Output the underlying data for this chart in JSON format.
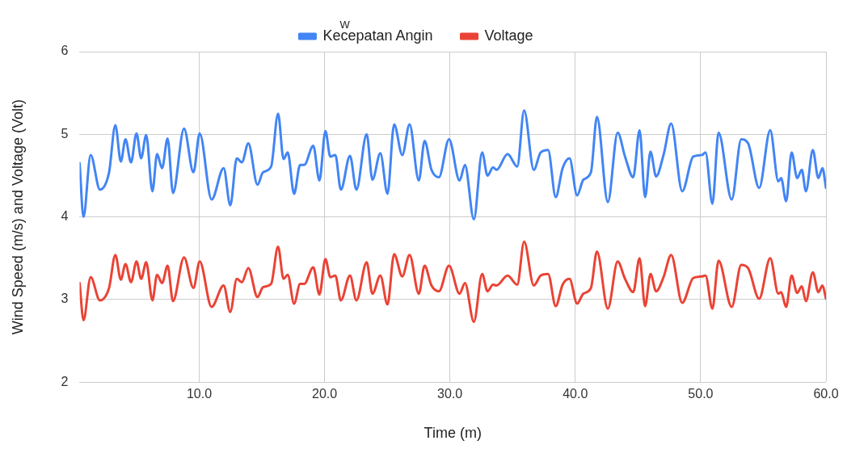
{
  "chart_data": {
    "type": "line",
    "xlabel": "Time (m)",
    "ylabel": "Wind Speed (m/s) and Voltage (Volt)",
    "legend": "top",
    "grid": true,
    "marker": "none",
    "line_style": "solid",
    "annotations": [
      "W"
    ],
    "xlim": [
      0.46,
      60
    ],
    "xticks": [
      {
        "value": 10,
        "label": "10.0"
      },
      {
        "value": 20,
        "label": "20.0"
      },
      {
        "value": 30,
        "label": "30.0"
      },
      {
        "value": 40,
        "label": "40.0"
      },
      {
        "value": 50,
        "label": "50.0"
      },
      {
        "value": 60,
        "label": "60.0"
      }
    ],
    "ylim": [
      2,
      6
    ],
    "yticks": [
      2,
      3,
      4,
      5,
      6
    ],
    "x": [
      0.46,
      0.77,
      1.34,
      2.08,
      2.81,
      3.31,
      3.75,
      4.12,
      4.56,
      5.0,
      5.37,
      5.77,
      6.27,
      6.64,
      7.04,
      7.48,
      7.91,
      8.79,
      9.54,
      10.04,
      10.99,
      11.95,
      12.48,
      13.0,
      13.4,
      13.92,
      14.65,
      15.09,
      15.74,
      16.29,
      16.73,
      17.06,
      17.57,
      18.05,
      18.38,
      19.1,
      19.59,
      20.07,
      20.46,
      20.86,
      21.3,
      22.03,
      22.54,
      23.36,
      23.82,
      24.45,
      25.02,
      25.55,
      26.2,
      26.78,
      27.52,
      27.98,
      28.53,
      29.12,
      29.93,
      30.77,
      31.2,
      31.91,
      32.57,
      33.0,
      33.44,
      33.72,
      34.6,
      35.37,
      35.92,
      36.69,
      37.24,
      37.83,
      38.44,
      38.99,
      39.54,
      40.15,
      40.64,
      41.25,
      41.73,
      42.6,
      43.38,
      43.97,
      44.62,
      45.13,
      45.57,
      46.0,
      46.45,
      47.04,
      47.65,
      48.53,
      49.41,
      50.11,
      50.39,
      50.94,
      51.43,
      52.48,
      53.24,
      53.79,
      54.67,
      55.55,
      56.2,
      56.42,
      56.82,
      57.26,
      57.7,
      58.07,
      58.4,
      58.95,
      59.39,
      59.72,
      60
    ],
    "series": [
      {
        "name": "Kecepatan Angin",
        "color": "#4285f4",
        "values": [
          4.65,
          4.0,
          4.75,
          4.33,
          4.54,
          5.11,
          4.67,
          4.94,
          4.66,
          5.01,
          4.71,
          4.99,
          4.31,
          4.76,
          4.59,
          4.95,
          4.29,
          5.07,
          4.54,
          5.01,
          4.21,
          4.59,
          4.14,
          4.71,
          4.66,
          4.89,
          4.39,
          4.54,
          4.61,
          5.25,
          4.7,
          4.78,
          4.28,
          4.63,
          4.63,
          4.86,
          4.44,
          5.04,
          4.73,
          4.75,
          4.33,
          4.74,
          4.33,
          5.0,
          4.45,
          4.77,
          4.28,
          5.12,
          4.75,
          5.12,
          4.44,
          4.92,
          4.57,
          4.48,
          4.94,
          4.44,
          4.63,
          3.97,
          4.78,
          4.5,
          4.6,
          4.57,
          4.76,
          4.61,
          5.29,
          4.57,
          4.78,
          4.81,
          4.24,
          4.59,
          4.71,
          4.26,
          4.45,
          4.54,
          5.21,
          4.18,
          5.02,
          4.73,
          4.48,
          5.05,
          4.24,
          4.79,
          4.49,
          4.75,
          5.13,
          4.31,
          4.73,
          4.75,
          4.78,
          4.16,
          5.02,
          4.21,
          4.94,
          4.89,
          4.35,
          5.05,
          4.43,
          4.47,
          4.19,
          4.78,
          4.47,
          4.57,
          4.31,
          4.81,
          4.47,
          4.59,
          4.35
        ]
      },
      {
        "name": "Voltage",
        "color": "#ea4335",
        "values": [
          3.2,
          2.75,
          3.27,
          2.99,
          3.14,
          3.54,
          3.24,
          3.43,
          3.21,
          3.46,
          3.25,
          3.45,
          2.99,
          3.3,
          3.2,
          3.41,
          2.98,
          3.51,
          3.14,
          3.46,
          2.91,
          3.17,
          2.85,
          3.25,
          3.21,
          3.38,
          3.03,
          3.15,
          3.19,
          3.64,
          3.25,
          3.3,
          2.95,
          3.19,
          3.19,
          3.39,
          3.06,
          3.49,
          3.27,
          3.29,
          2.99,
          3.29,
          2.99,
          3.45,
          3.07,
          3.29,
          2.94,
          3.55,
          3.28,
          3.54,
          3.07,
          3.41,
          3.17,
          3.1,
          3.41,
          3.07,
          3.2,
          2.73,
          3.31,
          3.1,
          3.18,
          3.17,
          3.29,
          3.18,
          3.7,
          3.17,
          3.29,
          3.31,
          2.92,
          3.18,
          3.25,
          2.95,
          3.07,
          3.14,
          3.58,
          2.89,
          3.46,
          3.25,
          3.09,
          3.5,
          2.92,
          3.31,
          3.1,
          3.27,
          3.54,
          2.96,
          3.26,
          3.28,
          3.29,
          2.89,
          3.47,
          2.91,
          3.42,
          3.38,
          3.01,
          3.5,
          3.07,
          3.09,
          2.91,
          3.29,
          3.08,
          3.16,
          2.98,
          3.33,
          3.09,
          3.17,
          3.01
        ]
      }
    ]
  }
}
